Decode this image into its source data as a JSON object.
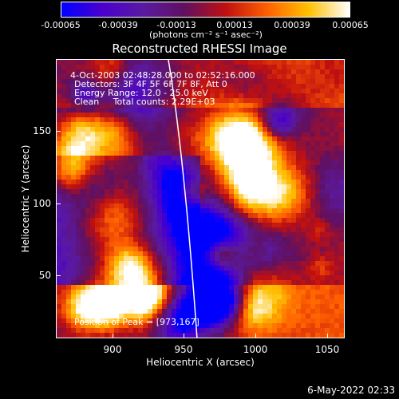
{
  "colorbar": {
    "tick_labels": [
      "-0.00065",
      "-0.00039",
      "-0.00013",
      "0.00013",
      "0.00039",
      "0.00065"
    ],
    "units_label": "(photons cm⁻² s⁻¹ asec⁻²)",
    "colors": [
      "#0000ff",
      "#4b00cc",
      "#5a1aa0",
      "#601060",
      "#c01010",
      "#ff6000",
      "#ffc000",
      "#ffffff"
    ]
  },
  "title": "Reconstructed RHESSI Image",
  "annotations": {
    "time_range": "4-Oct-2003 02:48:28.000 to 02:52:16.000",
    "detectors": "Detectors: 3F 4F 5F 6F 7F 8F, Att 0",
    "energy_range": "Energy Range: 12.0 - 25.0 keV",
    "method": "Clean     Total counts: 2.29E+03",
    "peak": "Position of Peak = [973,167]"
  },
  "axes": {
    "xlabel": "Heliocentric X (arcsec)",
    "ylabel": "Heliocentric Y (arcsec)",
    "x_ticks": [
      "900",
      "950",
      "1000",
      "1050"
    ],
    "y_ticks": [
      "150",
      "100",
      "50"
    ]
  },
  "footer": {
    "date": "6-May-2022 02:33"
  }
}
